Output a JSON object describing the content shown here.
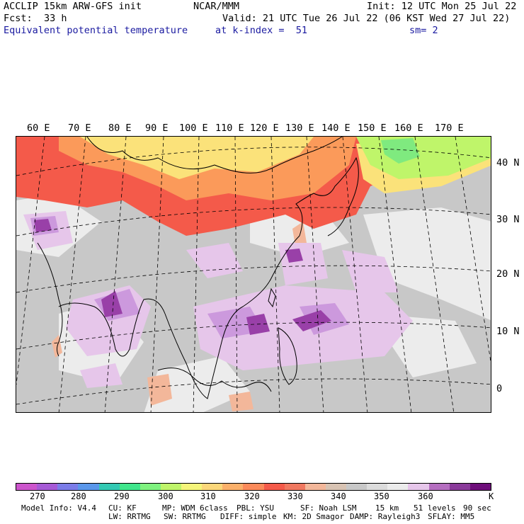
{
  "header": {
    "model": "ACCLIP 15km ARW-GFS init",
    "org": "NCAR/MMM",
    "init": "Init: 12 UTC Mon 25 Jul 22",
    "fcst_label": "Fcst:",
    "fcst_value": "33 h",
    "valid": "Valid: 21 UTC Tue 26 Jul 22 (06 KST Wed 27 Jul 22)",
    "field": "Equivalent potential temperature",
    "level": "at k-index =  51",
    "smooth": "sm= 2"
  },
  "map": {
    "lon_labels": [
      "60 E",
      "70 E",
      "80 E",
      "90 E",
      "100 E",
      "110 E",
      "120 E",
      "130 E",
      "140 E",
      "150 E",
      "160 E",
      "170 E"
    ],
    "lat_labels": [
      "40 N",
      "30 N",
      "20 N",
      "10 N",
      "0"
    ],
    "colors": {
      "cold": "#d9d9d9",
      "background_gray": "#c8c8c8",
      "light_gray": "#ececec",
      "tan": "#f3b79a",
      "red": "#f45a4a",
      "orange": "#fb9a5a",
      "yellow": "#fbe27a",
      "lime": "#bff56a",
      "green": "#7fea7f",
      "lilac": "#e6c6ea",
      "mauve": "#cc99dd",
      "purple": "#9940a8"
    }
  },
  "colorbar": {
    "colors": [
      "#cc55cc",
      "#a65ad6",
      "#7b7ce8",
      "#5a97ea",
      "#33c9b3",
      "#40e68c",
      "#7ff27f",
      "#bff56a",
      "#f5f57a",
      "#fbd77a",
      "#fbb06a",
      "#fb8a5a",
      "#f45a4a",
      "#f07860",
      "#f3b79a",
      "#d8c3b3",
      "#c8c8c8",
      "#dcdcdc",
      "#ececec",
      "#e6c6ea",
      "#b56ec0",
      "#8a3a9a",
      "#6e0e7a"
    ],
    "labels": [
      "270",
      "280",
      "290",
      "300",
      "310",
      "320",
      "330",
      "340",
      "350",
      "360",
      "K"
    ]
  },
  "footer": {
    "line1": [
      "Model Info: V4.4",
      "CU: KF",
      "MP: WDM 6class",
      "PBL: YSU",
      "SF: Noah LSM",
      "15 km",
      "51 levels",
      "90 sec"
    ],
    "line2": [
      "LW: RRTMG",
      "SW: RRTMG",
      "DIFF: simple",
      "KM: 2D Smagor",
      "DAMP: Rayleigh3",
      "SFLAY: MM5"
    ]
  }
}
